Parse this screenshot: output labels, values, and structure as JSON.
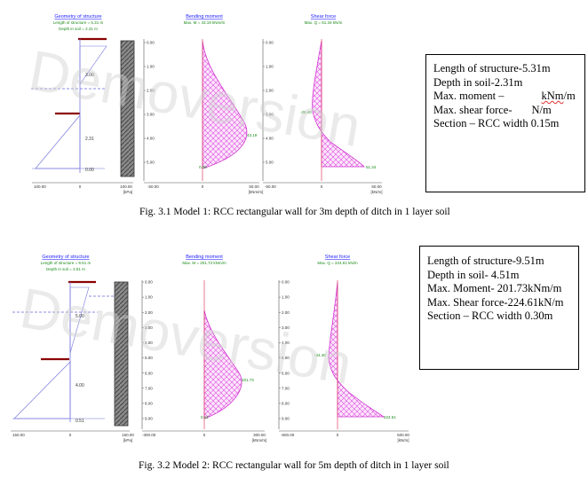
{
  "watermark": "Demoversion",
  "model1": {
    "geometry": {
      "title": "Geometry of structure",
      "line1": "Length of structure = 5.31 m",
      "line2": "Depth in soil = 2.31 m",
      "dim_upper": "3.00",
      "dim_lower": "2.31",
      "dim_bottom": "0.00",
      "x_ticks": [
        "100.00",
        "0",
        "100.00"
      ],
      "x_unit": "[kPa]"
    },
    "moment": {
      "title": "Bending moment",
      "subtitle": "Max. M = 43.19 kNm/m",
      "peak_label": "43.19",
      "base_label": "0.00",
      "x_ticks": [
        "-50.00",
        "0",
        "50.00"
      ],
      "x_unit": "[kNm/m]",
      "y_ticks": [
        "0.00",
        "1.00",
        "2.00",
        "3.00",
        "4.00",
        "5.00"
      ]
    },
    "shear": {
      "title": "Shear force",
      "subtitle": "Max. Q = 51.34 kN/m",
      "label_neg": "-26.40",
      "label_pos": "51.34",
      "x_ticks": [
        "-50.00",
        "0",
        "50.00"
      ],
      "x_unit": "[kN/m]",
      "y_ticks": [
        "0.00",
        "1.00",
        "2.00",
        "3.00",
        "4.00",
        "5.00"
      ]
    },
    "info": {
      "line1": "Length of structure-5.31m",
      "line2": "Depth in soil-2.31m",
      "line3_a": "Max. moment –",
      "line3_b": "kNm",
      "line3_c": "/m",
      "line4_a": "Max. shear force-",
      "line4_b": "N/m",
      "line5": "Section – RCC width 0.15m"
    },
    "caption": "Fig. 3.1 Model 1: RCC rectangular wall for 3m depth of ditch in 1 layer soil"
  },
  "model2": {
    "geometry": {
      "title": "Geometry of structure",
      "line1": "Length of structure = 9.51 m",
      "line2": "Depth in soil = 4.51 m",
      "dim_upper": "5.00",
      "dim_lower": "4.00",
      "dim_bottom": "0.51",
      "x_ticks": [
        "150.00",
        "0",
        "150.00"
      ],
      "x_unit": "[kPa]"
    },
    "moment": {
      "title": "Bending moment",
      "subtitle": "Max. M = 201.73 kNm/m",
      "peak_label": "201.73",
      "base_label": "0.12",
      "x_ticks": [
        "-300.00",
        "0",
        "300.00"
      ],
      "x_unit": "[kNm/m]",
      "y_ticks": [
        "0.00",
        "1.00",
        "2.00",
        "3.00",
        "4.00",
        "5.00",
        "6.00",
        "7.00",
        "8.00",
        "9.00"
      ]
    },
    "shear": {
      "title": "Shear force",
      "subtitle": "Max. Q = 224.61 kN/m",
      "label_neg": "-44.40",
      "label_pos": "224.61",
      "x_ticks": [
        "-500.00",
        "0",
        "500.00"
      ],
      "x_unit": "[kN/m]",
      "y_ticks": [
        "0.00",
        "1.00",
        "2.00",
        "3.00",
        "4.00",
        "5.00",
        "6.00",
        "7.00",
        "8.00",
        "9.00"
      ]
    },
    "info": {
      "line1": "Length of structure-9.51m",
      "line2": "Depth in soil- 4.51m",
      "line3": "Max. Moment- 201.73kNm/m",
      "line4": "Max. Shear force-224.61kN/m",
      "line5": "Section – RCC width 0.30m"
    },
    "caption": "Fig. 3.2 Model 2: RCC rectangular wall for 5m depth of ditch in 1 layer soil"
  }
}
